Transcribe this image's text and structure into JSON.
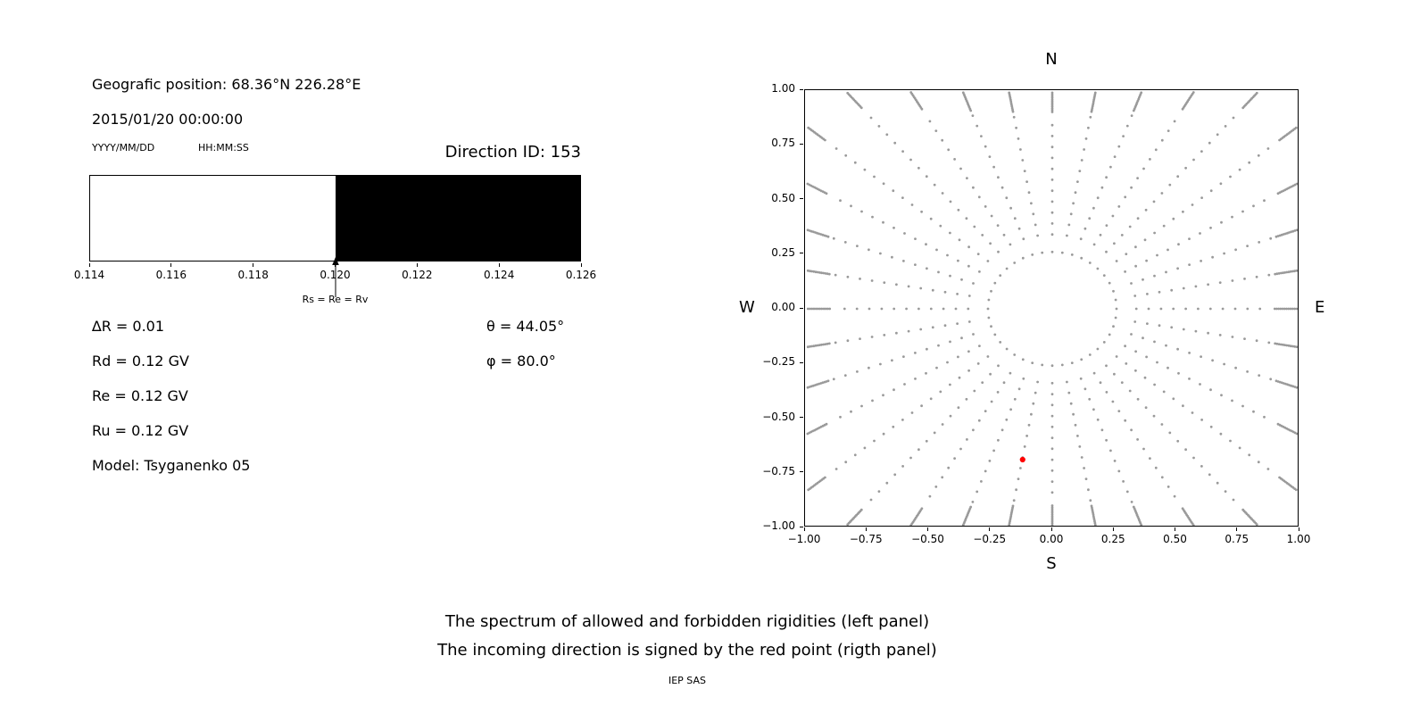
{
  "left_panel": {
    "geo_position": "Geografic position: 68.36°N 226.28°E",
    "datetime": "2015/01/20 00:00:00",
    "date_format": "YYYY/MM/DD",
    "time_format": "HH:MM:SS",
    "direction_id": "Direction ID: 153",
    "arrow_label": "Rs = Re = Rv",
    "params": {
      "delta_r": "∆R = 0.01",
      "rd": "Rd = 0.12 GV",
      "re": "Re = 0.12 GV",
      "ru": "Ru = 0.12 GV",
      "model": "Model: Tsyganenko 05",
      "theta": "θ = 44.05°",
      "phi": "φ = 80.0°"
    }
  },
  "caption": {
    "line1": "The spectrum of allowed and forbidden rigidities (left panel)",
    "line2": "The incoming direction is signed by the red point (rigth panel)",
    "credit": "IEP SAS"
  },
  "chart_data": [
    {
      "type": "bar",
      "name": "rigidity-spectrum",
      "xlim": [
        0.114,
        0.126
      ],
      "x_ticks": [
        {
          "value": 0.114,
          "label": "0.114"
        },
        {
          "value": 0.116,
          "label": "0.116"
        },
        {
          "value": 0.118,
          "label": "0.118"
        },
        {
          "value": 0.12,
          "label": "0.120"
        },
        {
          "value": 0.122,
          "label": "0.122"
        },
        {
          "value": 0.124,
          "label": "0.124"
        },
        {
          "value": 0.126,
          "label": "0.126"
        }
      ],
      "segments": [
        {
          "from": 0.114,
          "to": 0.12,
          "color": "#ffffff",
          "meaning": "allowed"
        },
        {
          "from": 0.12,
          "to": 0.126,
          "color": "#000000",
          "meaning": "forbidden"
        }
      ],
      "marker": {
        "value": 0.12,
        "label": "Rs = Re = Rv"
      }
    },
    {
      "type": "scatter",
      "name": "incoming-direction-map",
      "xlim": [
        -1,
        1
      ],
      "ylim": [
        -1,
        1
      ],
      "direction_labels": {
        "top": "N",
        "bottom": "S",
        "left": "W",
        "right": "E"
      },
      "x_ticks": [
        {
          "value": -1,
          "label": "−1.00"
        },
        {
          "value": -0.75,
          "label": "−0.75"
        },
        {
          "value": -0.5,
          "label": "−0.50"
        },
        {
          "value": -0.25,
          "label": "−0.25"
        },
        {
          "value": 0,
          "label": "0.00"
        },
        {
          "value": 0.25,
          "label": "0.25"
        },
        {
          "value": 0.5,
          "label": "0.50"
        },
        {
          "value": 0.75,
          "label": "0.75"
        },
        {
          "value": 1,
          "label": "1.00"
        }
      ],
      "y_ticks": [
        {
          "value": -1,
          "label": "−1.00"
        },
        {
          "value": -0.75,
          "label": "−0.75"
        },
        {
          "value": -0.5,
          "label": "−0.50"
        },
        {
          "value": -0.25,
          "label": "−0.25"
        },
        {
          "value": 0,
          "label": "0.00"
        },
        {
          "value": 0.25,
          "label": "0.25"
        },
        {
          "value": 0.5,
          "label": "0.50"
        },
        {
          "value": 0.75,
          "label": "0.75"
        },
        {
          "value": 1,
          "label": "1.00"
        }
      ],
      "dot_color": "#9a9a9a",
      "red_color": "#ff0000",
      "inner_ring": {
        "radius": 0.26,
        "points": 40
      },
      "spokes": {
        "count": 36,
        "angle_start_deg": 0,
        "angle_step_deg": 10,
        "r_start": 0.34,
        "r_step": 0.05,
        "r_max": 1.3,
        "tail_points": 12,
        "tail_step": 0.008
      },
      "red_point": {
        "x": -0.12,
        "y": -0.69
      }
    }
  ]
}
